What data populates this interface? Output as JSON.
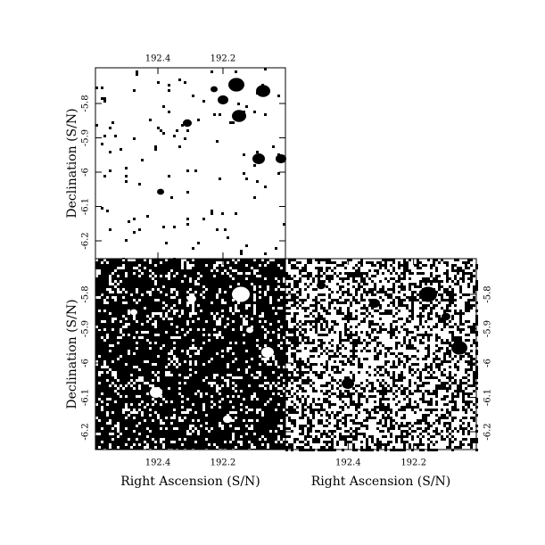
{
  "chart_data": [
    {
      "type": "image",
      "xlim": [
        192.592,
        192.008
      ],
      "ylim": [
        -6.252,
        -5.696
      ],
      "xticks": [
        192.4,
        192.2
      ],
      "yticks": [
        -6.2,
        -6.1,
        -6,
        -5.9,
        -5.8
      ],
      "ylabel": "Declination (S/N)",
      "background": "#ffffff",
      "foreground": "#000000"
    },
    {
      "type": "image",
      "xlim": [
        192.592,
        192.008
      ],
      "ylim": [
        -6.252,
        -5.696
      ],
      "xticks": [
        192.4,
        192.2
      ],
      "yticks": [
        -6.2,
        -6.1,
        -6,
        -5.9,
        -5.8
      ],
      "xlabel": "Right Ascension (S/N)",
      "ylabel": "Declination (S/N)",
      "background": "#000000",
      "foreground": "#ffffff"
    },
    {
      "type": "image",
      "xlim": [
        192.592,
        192.008
      ],
      "ylim": [
        -6.252,
        -5.696
      ],
      "xticks": [
        192.4,
        192.2
      ],
      "yticks": [
        -6.2,
        -6.1,
        -6,
        -5.9,
        -5.8
      ],
      "xlabel": "Right Ascension (S/N)",
      "background": "#ffffff",
      "foreground": "#000000"
    }
  ]
}
